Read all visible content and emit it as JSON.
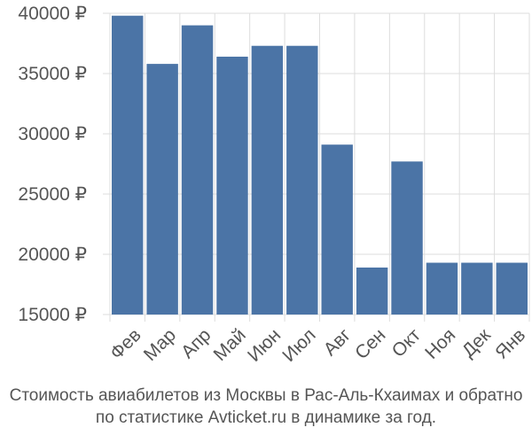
{
  "chart_data": {
    "type": "bar",
    "categories": [
      "Фев",
      "Мар",
      "Апр",
      "Май",
      "Июн",
      "Июл",
      "Авг",
      "Сен",
      "Окт",
      "Ноя",
      "Дек",
      "Янв"
    ],
    "values": [
      39800,
      35800,
      39000,
      36400,
      37300,
      37300,
      29100,
      18900,
      27700,
      19300,
      19300,
      19300
    ],
    "ylim": [
      15000,
      40000
    ],
    "yticks": [
      15000,
      20000,
      25000,
      30000,
      35000,
      40000
    ],
    "ytick_labels": [
      "15000 ₽",
      "20000 ₽",
      "25000 ₽",
      "30000 ₽",
      "35000 ₽",
      "40000 ₽"
    ],
    "title": "",
    "xlabel": "",
    "ylabel": "",
    "grid": true,
    "bar_color": "#4b74a6",
    "grid_color": "#dddddd"
  },
  "caption": {
    "line1": "Стоимость авиабилетов из Москвы в Рас-Аль-Кхаимах и обратно",
    "line2": "по статистике Avticket.ru в динамике за год."
  }
}
